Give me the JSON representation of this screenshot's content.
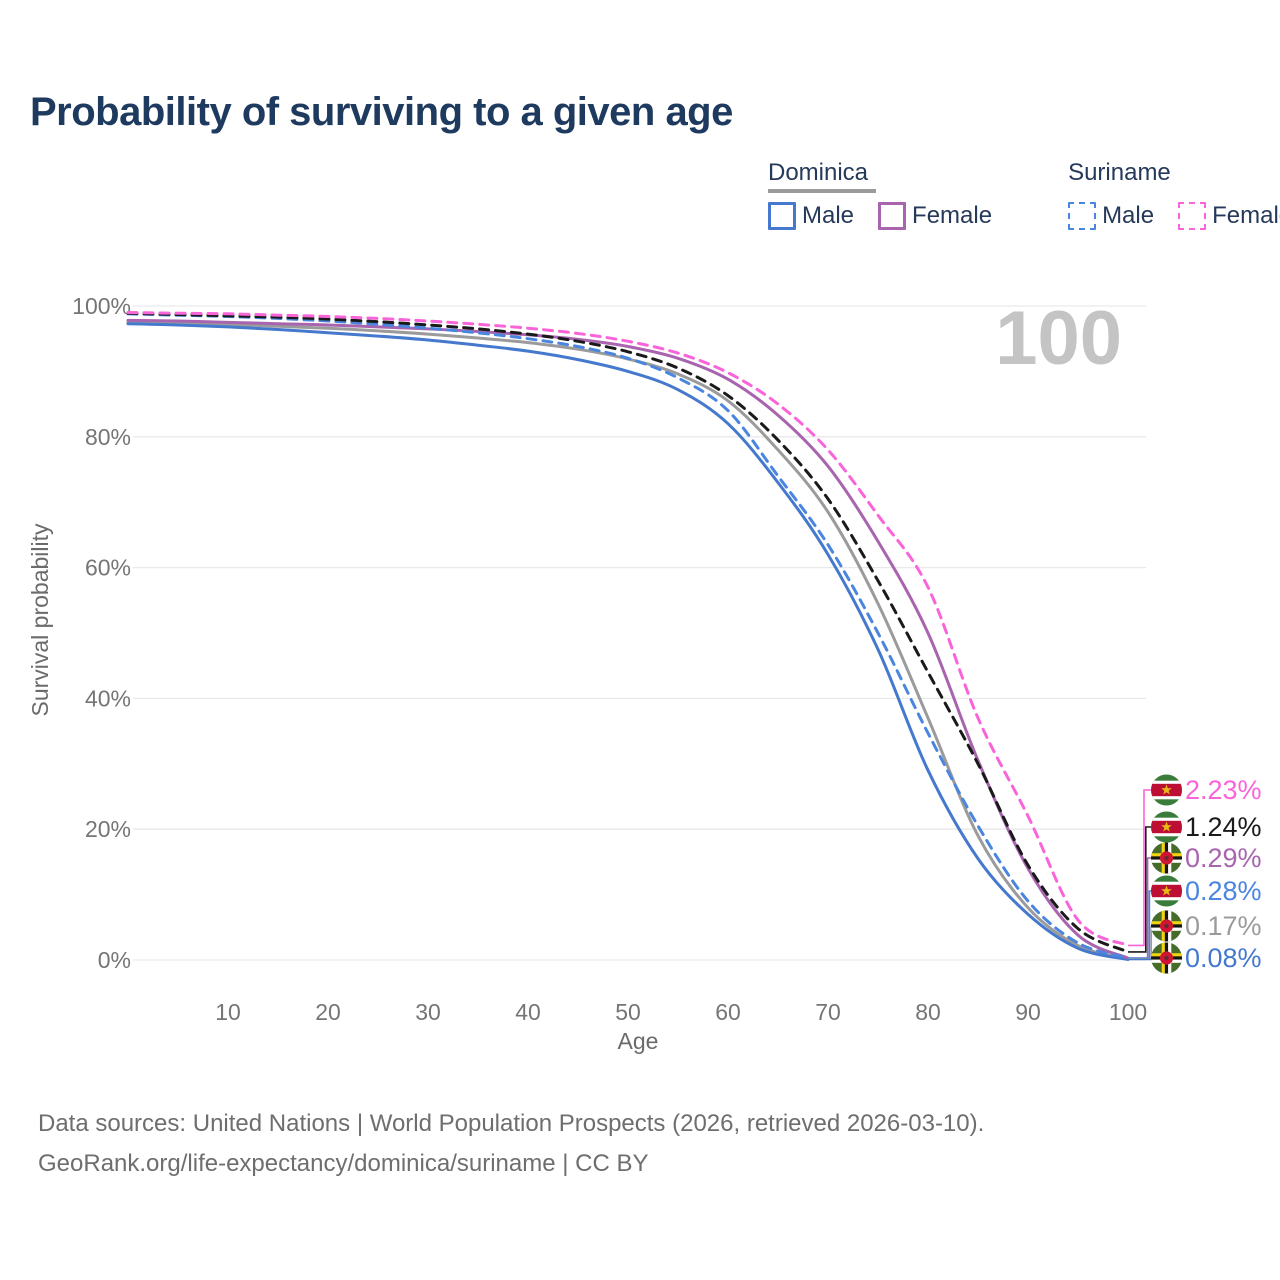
{
  "title": "Probability of surviving to a given age",
  "watermark": "100",
  "colors": {
    "title_text": "#1e3a5e",
    "legend_text": "#25395a",
    "axis_tick_text": "#757575",
    "axis_title_text": "#6b6b6b",
    "gridline": "#e9e9e9",
    "watermark_text": "#c4c4c4",
    "footer_text": "#6e6e6e",
    "dominica_group_line": "#9b9b9b",
    "suriname_group_line": "#1a1a1a"
  },
  "legend": {
    "groups": [
      {
        "name": "Dominica",
        "line_style": "solid",
        "line_color": "#9b9b9b",
        "items": [
          {
            "label": "Male",
            "color": "#4579cd"
          },
          {
            "label": "Female",
            "color": "#a864ae"
          }
        ]
      },
      {
        "name": "Suriname",
        "line_style": "dashed",
        "line_color": "#1a1a1a",
        "items": [
          {
            "label": "Male",
            "color": "#4a86e0"
          },
          {
            "label": "Female",
            "color": "#fa64da"
          }
        ]
      }
    ]
  },
  "axes": {
    "x": {
      "label": "Age",
      "min": 0,
      "max": 100,
      "ticks": [
        10,
        20,
        30,
        40,
        50,
        60,
        70,
        80,
        90,
        100
      ]
    },
    "y": {
      "label": "Survival probability",
      "min": 0,
      "max": 100,
      "ticks": [
        {
          "label": "0%",
          "value": 0
        },
        {
          "label": "20%",
          "value": 20
        },
        {
          "label": "40%",
          "value": 40
        },
        {
          "label": "60%",
          "value": 60
        },
        {
          "label": "80%",
          "value": 80
        },
        {
          "label": "100%",
          "value": 100
        }
      ]
    }
  },
  "chart_data": {
    "type": "line",
    "title": "Probability of surviving to a given age",
    "xlabel": "Age",
    "ylabel": "Survival probability",
    "ylim": [
      0,
      100
    ],
    "grid": "horizontal",
    "x": [
      0,
      5,
      10,
      15,
      20,
      25,
      30,
      35,
      40,
      45,
      50,
      55,
      60,
      65,
      70,
      75,
      80,
      85,
      90,
      95,
      100
    ],
    "series": [
      {
        "id": "dominica-total",
        "name": "Dominica (both sexes)",
        "country": "Dominica",
        "color": "#9b9b9b",
        "dash": false,
        "end_label": "0.17%",
        "end_value": 0.17,
        "flag": "dominica",
        "values": [
          97.5,
          97.4,
          97.2,
          96.9,
          96.6,
          96.2,
          95.7,
          95.1,
          94.4,
          93.4,
          91.9,
          89.6,
          85.5,
          78.0,
          68.5,
          54.5,
          37.0,
          19.0,
          8.0,
          2.2,
          0.17
        ]
      },
      {
        "id": "dominica-male",
        "name": "Dominica Male",
        "country": "Dominica",
        "sex": "Male",
        "color": "#4579cd",
        "dash": false,
        "end_label": "0.08%",
        "end_value": 0.08,
        "flag": "dominica",
        "values": [
          97.3,
          97.1,
          96.8,
          96.4,
          95.9,
          95.4,
          94.8,
          94.0,
          93.1,
          91.8,
          90.0,
          87.2,
          82.0,
          73.0,
          62.0,
          47.5,
          29.0,
          15.5,
          7.0,
          1.8,
          0.08
        ]
      },
      {
        "id": "dominica-female",
        "name": "Dominica Female",
        "country": "Dominica",
        "sex": "Female",
        "color": "#a864ae",
        "dash": false,
        "end_label": "0.29%",
        "end_value": 0.29,
        "flag": "dominica",
        "values": [
          97.8,
          97.7,
          97.5,
          97.3,
          97.1,
          96.8,
          96.5,
          96.1,
          95.6,
          94.9,
          93.8,
          92.0,
          88.8,
          83.3,
          75.5,
          64.0,
          50.0,
          30.5,
          14.0,
          3.8,
          0.29
        ]
      },
      {
        "id": "suriname-male",
        "name": "Suriname Male",
        "country": "Suriname",
        "sex": "Male",
        "color": "#4a86e0",
        "dash": true,
        "end_label": "0.28%",
        "end_value": 0.28,
        "flag": "suriname",
        "values": [
          98.8,
          98.6,
          98.4,
          98.1,
          97.7,
          97.2,
          96.6,
          95.9,
          95.0,
          93.8,
          92.0,
          89.0,
          84.0,
          74.0,
          63.5,
          50.0,
          34.7,
          20.5,
          9.0,
          2.6,
          0.28
        ]
      },
      {
        "id": "suriname-total",
        "name": "Suriname (both sexes)",
        "country": "Suriname",
        "color": "#1a1a1a",
        "dash": true,
        "end_label": "1.24%",
        "end_value": 1.24,
        "flag": "suriname",
        "values": [
          98.9,
          98.7,
          98.5,
          98.3,
          98.0,
          97.6,
          97.1,
          96.5,
          95.7,
          94.6,
          93.0,
          90.5,
          86.3,
          79.5,
          70.5,
          58.0,
          44.0,
          30.0,
          14.5,
          4.8,
          1.24
        ]
      },
      {
        "id": "suriname-female",
        "name": "Suriname Female",
        "country": "Suriname",
        "sex": "Female",
        "color": "#fa64da",
        "dash": true,
        "end_label": "2.23%",
        "end_value": 2.23,
        "flag": "suriname",
        "values": [
          99.0,
          98.9,
          98.8,
          98.6,
          98.4,
          98.1,
          97.7,
          97.2,
          96.6,
          95.8,
          94.6,
          92.8,
          89.8,
          85.0,
          78.0,
          68.0,
          57.0,
          37.0,
          22.0,
          6.1,
          2.23
        ]
      }
    ]
  },
  "footer": {
    "line1": "Data sources: United Nations | World Population Prospects (2026, retrieved 2026-03-10).",
    "line2": "GeoRank.org/life-expectancy/dominica/suriname | CC BY"
  }
}
